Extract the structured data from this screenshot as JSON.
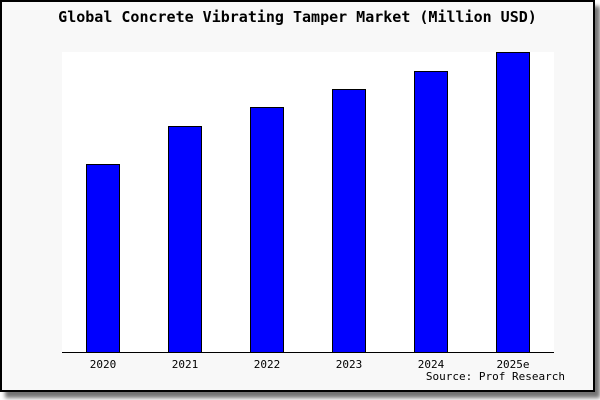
{
  "chart_data": {
    "type": "bar",
    "title": "Global Concrete Vibrating Tamper Market (Million USD)",
    "categories": [
      "2020",
      "2021",
      "2022",
      "2023",
      "2024",
      "2025e"
    ],
    "values": [
      62.8,
      75.4,
      81.7,
      87.7,
      93.6,
      100
    ],
    "xlabel": "",
    "ylabel": "",
    "ylim": [
      0,
      100
    ],
    "y_axis_visible": false,
    "grid": false,
    "legend": "none",
    "bar_color": "#0000ff",
    "bar_border_color": "#000000",
    "plot_background": "#ffffff",
    "panel_background": "#f8f8f8",
    "source": "Source: Prof Research"
  }
}
